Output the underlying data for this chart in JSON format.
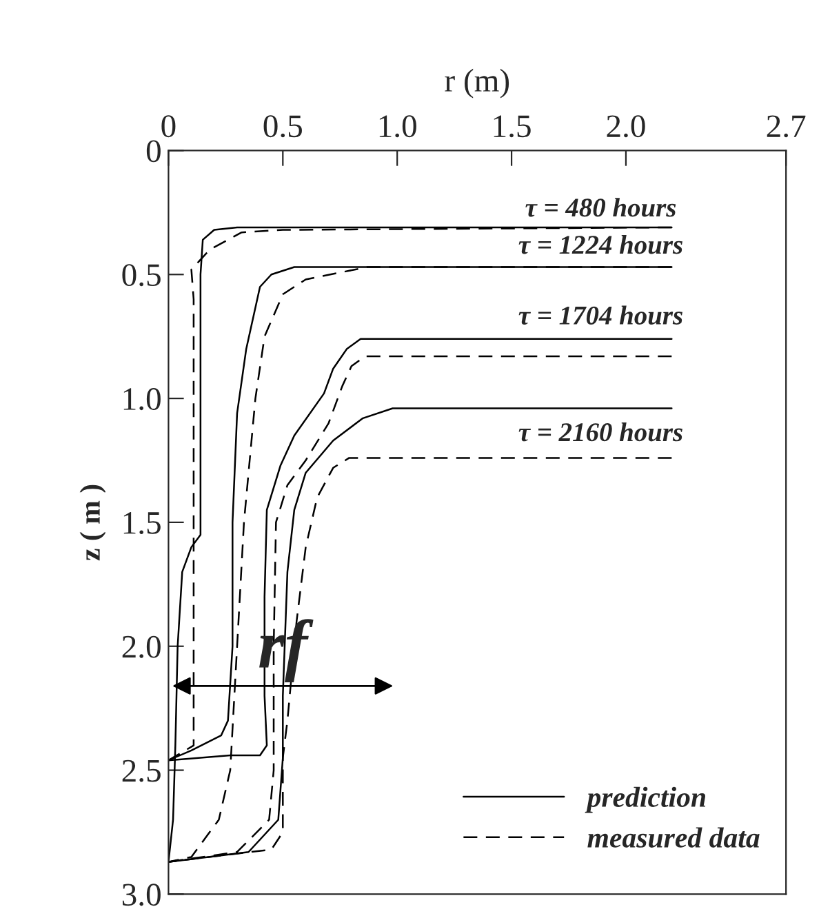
{
  "chart_data": {
    "type": "line",
    "xlabel": "r (m)",
    "ylabel": "z ( m )",
    "xlim": [
      0,
      2.7
    ],
    "xticks": [
      0,
      0.5,
      {
        "value": 1,
        "label": "1.0"
      },
      1.5,
      {
        "value": 2,
        "label": "2.0"
      },
      2.7
    ],
    "ylim": [
      3.0,
      0
    ],
    "yticks": [
      0,
      0.5,
      {
        "value": 1,
        "label": "1.0"
      },
      1.5,
      {
        "value": 2,
        "label": "2.0"
      },
      2.5,
      {
        "value": 3,
        "label": "3.0"
      }
    ],
    "grid": false,
    "legend": "bottom right",
    "marker": "none",
    "series": [
      {
        "name": "prediction",
        "color": "#000000",
        "line_style": "solid",
        "x": [
          2.2,
          0.3,
          0.2,
          0.15,
          0.14,
          0.14,
          0.14,
          0.1,
          0.06,
          0.04,
          0.03,
          0.02,
          0.0
        ],
        "values": [
          0.31,
          0.31,
          0.32,
          0.36,
          0.5,
          1.4,
          1.55,
          1.6,
          1.7,
          2.0,
          2.4,
          2.7,
          2.87
        ]
      },
      {
        "name": "measured data",
        "color": "#000000",
        "line_style": "dashed",
        "x": [
          2.2,
          0.5,
          0.32,
          0.18,
          0.1,
          0.11,
          0.11,
          0.11,
          0.0
        ],
        "values": [
          0.31,
          0.32,
          0.33,
          0.4,
          0.48,
          0.6,
          1.5,
          2.4,
          2.46
        ]
      },
      {
        "color": "#000000",
        "line_style": "solid",
        "x": [
          2.2,
          0.55,
          0.45,
          0.4,
          0.34,
          0.3,
          0.28,
          0.28,
          0.26,
          0.23,
          0.1,
          0.0
        ],
        "values": [
          0.47,
          0.47,
          0.5,
          0.55,
          0.8,
          1.06,
          1.5,
          2.0,
          2.3,
          2.36,
          2.42,
          2.46
        ]
      },
      {
        "color": "#000000",
        "line_style": "dashed",
        "x": [
          2.2,
          0.87,
          0.6,
          0.5,
          0.42,
          0.38,
          0.33,
          0.3,
          0.27,
          0.22,
          0.1,
          0.0
        ],
        "values": [
          0.47,
          0.47,
          0.52,
          0.58,
          0.75,
          1.0,
          1.5,
          2.0,
          2.5,
          2.7,
          2.85,
          2.87
        ]
      },
      {
        "color": "#000000",
        "line_style": "solid",
        "x": [
          2.2,
          0.84,
          0.78,
          0.72,
          0.68,
          0.55,
          0.49,
          0.43,
          0.42,
          0.42,
          0.43,
          0.4,
          0.27,
          0.0
        ],
        "values": [
          0.76,
          0.76,
          0.8,
          0.88,
          0.98,
          1.15,
          1.27,
          1.45,
          1.8,
          2.2,
          2.4,
          2.44,
          2.44,
          2.46
        ]
      },
      {
        "color": "#000000",
        "line_style": "dashed",
        "x": [
          2.2,
          0.86,
          0.8,
          0.76,
          0.7,
          0.6,
          0.52,
          0.47,
          0.46,
          0.46,
          0.44,
          0.3,
          0.0
        ],
        "values": [
          0.83,
          0.83,
          0.87,
          0.95,
          1.1,
          1.25,
          1.35,
          1.5,
          2.0,
          2.5,
          2.7,
          2.83,
          2.87
        ]
      },
      {
        "color": "#000000",
        "line_style": "solid",
        "x": [
          2.2,
          0.98,
          0.85,
          0.72,
          0.6,
          0.55,
          0.52,
          0.5,
          0.5,
          0.48,
          0.35,
          0.0
        ],
        "values": [
          1.04,
          1.04,
          1.08,
          1.17,
          1.3,
          1.45,
          1.7,
          2.2,
          2.45,
          2.7,
          2.83,
          2.87
        ]
      },
      {
        "color": "#000000",
        "line_style": "dashed",
        "x": [
          2.2,
          0.79,
          0.72,
          0.65,
          0.6,
          0.56,
          0.52,
          0.5,
          0.5,
          0.45,
          0.0
        ],
        "values": [
          1.24,
          1.24,
          1.28,
          1.4,
          1.6,
          1.9,
          2.3,
          2.45,
          2.75,
          2.82,
          2.87
        ]
      }
    ],
    "annotations": [
      "τ = 480 hours",
      "τ = 1224 hours",
      "τ = 1704 hours",
      "τ = 2160 hours",
      "rf"
    ]
  }
}
